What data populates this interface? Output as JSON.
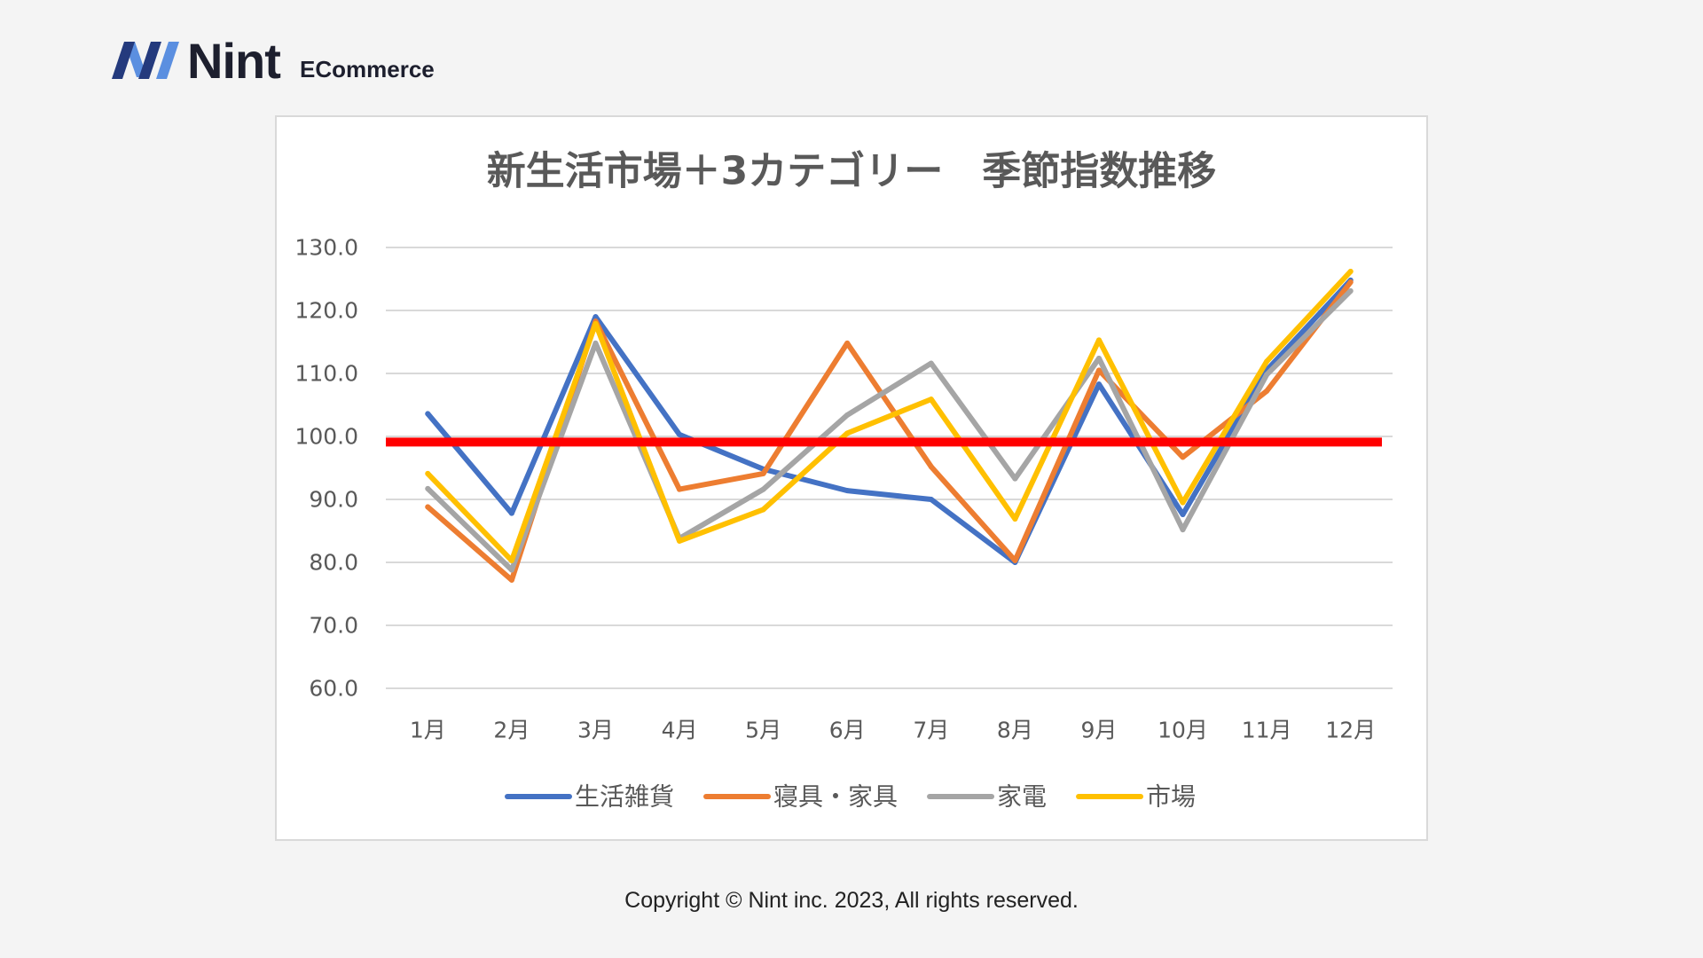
{
  "logo": {
    "name": "Nint",
    "product": "ECommerce",
    "mark_colors": {
      "dark": "#243a7d",
      "light": "#5b8fe0"
    }
  },
  "footer": {
    "copyright": "Copyright © Nint inc. 2023, All rights reserved."
  },
  "chart_data": {
    "type": "line",
    "title": "新生活市場＋3カテゴリー　季節指数推移",
    "categories": [
      "1月",
      "2月",
      "3月",
      "4月",
      "5月",
      "6月",
      "7月",
      "8月",
      "9月",
      "10月",
      "11月",
      "12月"
    ],
    "ylim": [
      60,
      130
    ],
    "yticks": [
      "60.0",
      "70.0",
      "80.0",
      "90.0",
      "100.0",
      "110.0",
      "120.0",
      "130.0"
    ],
    "grid": true,
    "legend_position": "bottom",
    "series": [
      {
        "name": "生活雑貨",
        "color": "#4472c4",
        "values": [
          103.6,
          87.8,
          119.0,
          100.3,
          94.8,
          91.4,
          90.0,
          80.0,
          108.3,
          87.6,
          110.5,
          124.8
        ]
      },
      {
        "name": "寝具・家具",
        "color": "#ed7d31",
        "values": [
          88.8,
          77.2,
          118.3,
          91.6,
          94.1,
          114.8,
          95.2,
          80.3,
          110.5,
          96.7,
          107.2,
          124.5
        ]
      },
      {
        "name": "家電",
        "color": "#a5a5a5",
        "values": [
          91.7,
          78.8,
          114.8,
          83.8,
          91.6,
          103.4,
          111.6,
          93.3,
          112.4,
          85.2,
          109.8,
          123.1
        ]
      },
      {
        "name": "市場",
        "color": "#ffc000",
        "values": [
          94.1,
          80.3,
          117.9,
          83.4,
          88.4,
          100.5,
          105.9,
          86.9,
          115.3,
          89.5,
          111.9,
          126.2
        ]
      }
    ],
    "reference_line": {
      "value": 99.1,
      "color": "#ff0000"
    }
  }
}
